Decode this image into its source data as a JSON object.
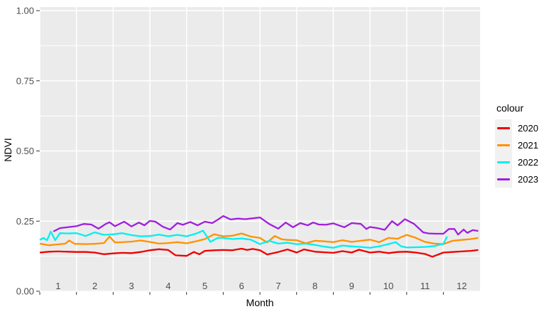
{
  "figure": {
    "kind": "ggplot-style line chart",
    "background": "#FFFFFF"
  },
  "colors": {
    "panel_background": "#EBEBEB",
    "gridline": "#FFFFFF",
    "tick_mark": "#333333",
    "tick_text": "#4D4D4D",
    "axis_title_text": "#000000",
    "legend_key_background": "#F1F1F1"
  },
  "axes": {
    "x": {
      "title": "Month",
      "tick_labels": [
        "1",
        "2",
        "3",
        "4",
        "5",
        "6",
        "7",
        "8",
        "9",
        "10",
        "11",
        "12"
      ],
      "tick_values": [
        1,
        2,
        3,
        4,
        5,
        6,
        7,
        8,
        9,
        10,
        11,
        12
      ],
      "label_offset": 0.5,
      "range": [
        1,
        13
      ]
    },
    "y": {
      "title": "NDVI",
      "tick_labels": [
        "0.00",
        "0.25",
        "0.50",
        "0.75",
        "1.00"
      ],
      "tick_values": [
        0,
        0.25,
        0.5,
        0.75,
        1.0
      ],
      "minor_values": [
        0.125,
        0.375,
        0.625,
        0.875
      ],
      "range": [
        0,
        1.0127
      ]
    }
  },
  "legend": {
    "title": "colour",
    "items": [
      {
        "label": "2020",
        "color": "#EE0000"
      },
      {
        "label": "2021",
        "color": "#FF9100"
      },
      {
        "label": "2022",
        "color": "#00F0F0"
      },
      {
        "label": "2023",
        "color": "#A11FDB"
      }
    ]
  },
  "chart_data": {
    "type": "line",
    "title": "",
    "xlabel": "Month",
    "ylabel": "NDVI",
    "xlim": [
      1,
      13
    ],
    "ylim": [
      0,
      1.0
    ],
    "grid": "on",
    "legend_position": "right",
    "legend_title": "colour",
    "series": [
      {
        "name": "2020",
        "color": "#EE0000",
        "points": [
          [
            1.0,
            0.138
          ],
          [
            1.25,
            0.141
          ],
          [
            1.5,
            0.142
          ],
          [
            1.75,
            0.141
          ],
          [
            2.0,
            0.14
          ],
          [
            2.25,
            0.14
          ],
          [
            2.5,
            0.138
          ],
          [
            2.75,
            0.132
          ],
          [
            3.0,
            0.135
          ],
          [
            3.25,
            0.137
          ],
          [
            3.5,
            0.136
          ],
          [
            3.75,
            0.14
          ],
          [
            4.0,
            0.146
          ],
          [
            4.25,
            0.15
          ],
          [
            4.5,
            0.147
          ],
          [
            4.7,
            0.128
          ],
          [
            5.0,
            0.126
          ],
          [
            5.2,
            0.14
          ],
          [
            5.35,
            0.132
          ],
          [
            5.5,
            0.144
          ],
          [
            5.75,
            0.146
          ],
          [
            6.0,
            0.147
          ],
          [
            6.25,
            0.146
          ],
          [
            6.5,
            0.152
          ],
          [
            6.65,
            0.147
          ],
          [
            6.8,
            0.151
          ],
          [
            7.0,
            0.146
          ],
          [
            7.2,
            0.131
          ],
          [
            7.5,
            0.14
          ],
          [
            7.75,
            0.149
          ],
          [
            8.0,
            0.138
          ],
          [
            8.2,
            0.149
          ],
          [
            8.5,
            0.141
          ],
          [
            8.75,
            0.139
          ],
          [
            9.0,
            0.137
          ],
          [
            9.25,
            0.143
          ],
          [
            9.5,
            0.138
          ],
          [
            9.7,
            0.148
          ],
          [
            10.0,
            0.138
          ],
          [
            10.25,
            0.141
          ],
          [
            10.5,
            0.136
          ],
          [
            10.75,
            0.14
          ],
          [
            11.0,
            0.141
          ],
          [
            11.25,
            0.138
          ],
          [
            11.5,
            0.133
          ],
          [
            11.7,
            0.123
          ],
          [
            12.0,
            0.138
          ],
          [
            12.25,
            0.14
          ],
          [
            12.5,
            0.142
          ],
          [
            12.75,
            0.144
          ],
          [
            12.95,
            0.147
          ]
        ]
      },
      {
        "name": "2021",
        "color": "#FF9100",
        "points": [
          [
            1.0,
            0.17
          ],
          [
            1.25,
            0.164
          ],
          [
            1.5,
            0.167
          ],
          [
            1.7,
            0.17
          ],
          [
            1.8,
            0.181
          ],
          [
            1.95,
            0.169
          ],
          [
            2.25,
            0.168
          ],
          [
            2.5,
            0.169
          ],
          [
            2.75,
            0.172
          ],
          [
            2.9,
            0.195
          ],
          [
            3.05,
            0.174
          ],
          [
            3.25,
            0.175
          ],
          [
            3.5,
            0.177
          ],
          [
            3.75,
            0.181
          ],
          [
            4.0,
            0.176
          ],
          [
            4.25,
            0.17
          ],
          [
            4.5,
            0.172
          ],
          [
            4.75,
            0.175
          ],
          [
            5.0,
            0.171
          ],
          [
            5.25,
            0.178
          ],
          [
            5.5,
            0.186
          ],
          [
            5.75,
            0.203
          ],
          [
            6.0,
            0.196
          ],
          [
            6.25,
            0.198
          ],
          [
            6.5,
            0.206
          ],
          [
            6.75,
            0.195
          ],
          [
            7.0,
            0.19
          ],
          [
            7.2,
            0.174
          ],
          [
            7.4,
            0.197
          ],
          [
            7.6,
            0.185
          ],
          [
            7.75,
            0.183
          ],
          [
            8.0,
            0.182
          ],
          [
            8.25,
            0.171
          ],
          [
            8.5,
            0.18
          ],
          [
            8.75,
            0.178
          ],
          [
            9.0,
            0.175
          ],
          [
            9.25,
            0.182
          ],
          [
            9.5,
            0.176
          ],
          [
            9.75,
            0.18
          ],
          [
            10.0,
            0.184
          ],
          [
            10.25,
            0.175
          ],
          [
            10.5,
            0.19
          ],
          [
            10.75,
            0.187
          ],
          [
            11.0,
            0.201
          ],
          [
            11.25,
            0.19
          ],
          [
            11.5,
            0.176
          ],
          [
            11.75,
            0.17
          ],
          [
            12.0,
            0.168
          ],
          [
            12.25,
            0.18
          ],
          [
            12.5,
            0.183
          ],
          [
            12.75,
            0.186
          ],
          [
            12.95,
            0.19
          ]
        ]
      },
      {
        "name": "2022",
        "color": "#00F0F0",
        "points": [
          [
            1.0,
            0.183
          ],
          [
            1.1,
            0.19
          ],
          [
            1.2,
            0.182
          ],
          [
            1.3,
            0.213
          ],
          [
            1.42,
            0.182
          ],
          [
            1.55,
            0.207
          ],
          [
            1.75,
            0.206
          ],
          [
            2.0,
            0.207
          ],
          [
            2.25,
            0.197
          ],
          [
            2.5,
            0.21
          ],
          [
            2.75,
            0.201
          ],
          [
            3.0,
            0.203
          ],
          [
            3.25,
            0.207
          ],
          [
            3.5,
            0.2
          ],
          [
            3.75,
            0.196
          ],
          [
            4.0,
            0.197
          ],
          [
            4.25,
            0.202
          ],
          [
            4.5,
            0.196
          ],
          [
            4.75,
            0.201
          ],
          [
            5.0,
            0.196
          ],
          [
            5.25,
            0.205
          ],
          [
            5.45,
            0.216
          ],
          [
            5.65,
            0.176
          ],
          [
            5.85,
            0.19
          ],
          [
            6.0,
            0.19
          ],
          [
            6.25,
            0.186
          ],
          [
            6.5,
            0.188
          ],
          [
            6.75,
            0.184
          ],
          [
            7.0,
            0.168
          ],
          [
            7.25,
            0.18
          ],
          [
            7.5,
            0.17
          ],
          [
            7.75,
            0.173
          ],
          [
            8.0,
            0.168
          ],
          [
            8.25,
            0.17
          ],
          [
            8.5,
            0.165
          ],
          [
            8.75,
            0.159
          ],
          [
            9.0,
            0.155
          ],
          [
            9.25,
            0.163
          ],
          [
            9.5,
            0.16
          ],
          [
            9.75,
            0.158
          ],
          [
            10.0,
            0.155
          ],
          [
            10.25,
            0.16
          ],
          [
            10.5,
            0.168
          ],
          [
            10.7,
            0.175
          ],
          [
            10.85,
            0.16
          ],
          [
            11.0,
            0.156
          ],
          [
            11.25,
            0.157
          ],
          [
            11.5,
            0.158
          ],
          [
            11.75,
            0.161
          ],
          [
            12.0,
            0.169
          ],
          [
            12.1,
            0.195
          ]
        ]
      },
      {
        "name": "2023",
        "color": "#A11FDB",
        "points": [
          [
            1.37,
            0.213
          ],
          [
            1.55,
            0.225
          ],
          [
            1.75,
            0.228
          ],
          [
            2.0,
            0.232
          ],
          [
            2.2,
            0.24
          ],
          [
            2.4,
            0.238
          ],
          [
            2.6,
            0.223
          ],
          [
            2.8,
            0.24
          ],
          [
            2.9,
            0.246
          ],
          [
            3.05,
            0.232
          ],
          [
            3.3,
            0.248
          ],
          [
            3.5,
            0.231
          ],
          [
            3.7,
            0.245
          ],
          [
            3.85,
            0.235
          ],
          [
            4.0,
            0.251
          ],
          [
            4.15,
            0.248
          ],
          [
            4.35,
            0.23
          ],
          [
            4.55,
            0.22
          ],
          [
            4.75,
            0.243
          ],
          [
            4.9,
            0.237
          ],
          [
            5.1,
            0.247
          ],
          [
            5.3,
            0.235
          ],
          [
            5.5,
            0.248
          ],
          [
            5.7,
            0.243
          ],
          [
            5.85,
            0.255
          ],
          [
            6.0,
            0.268
          ],
          [
            6.2,
            0.256
          ],
          [
            6.4,
            0.259
          ],
          [
            6.6,
            0.257
          ],
          [
            6.8,
            0.26
          ],
          [
            7.0,
            0.263
          ],
          [
            7.25,
            0.24
          ],
          [
            7.5,
            0.223
          ],
          [
            7.7,
            0.245
          ],
          [
            7.9,
            0.228
          ],
          [
            8.1,
            0.243
          ],
          [
            8.3,
            0.235
          ],
          [
            8.45,
            0.245
          ],
          [
            8.6,
            0.238
          ],
          [
            8.8,
            0.237
          ],
          [
            9.0,
            0.242
          ],
          [
            9.3,
            0.228
          ],
          [
            9.5,
            0.243
          ],
          [
            9.75,
            0.24
          ],
          [
            9.9,
            0.222
          ],
          [
            10.0,
            0.229
          ],
          [
            10.2,
            0.225
          ],
          [
            10.4,
            0.219
          ],
          [
            10.6,
            0.25
          ],
          [
            10.75,
            0.235
          ],
          [
            10.95,
            0.257
          ],
          [
            11.2,
            0.24
          ],
          [
            11.45,
            0.21
          ],
          [
            11.6,
            0.206
          ],
          [
            11.8,
            0.205
          ],
          [
            12.0,
            0.205
          ],
          [
            12.15,
            0.222
          ],
          [
            12.3,
            0.222
          ],
          [
            12.4,
            0.202
          ],
          [
            12.55,
            0.22
          ],
          [
            12.65,
            0.208
          ],
          [
            12.8,
            0.218
          ],
          [
            12.95,
            0.215
          ]
        ]
      }
    ]
  }
}
